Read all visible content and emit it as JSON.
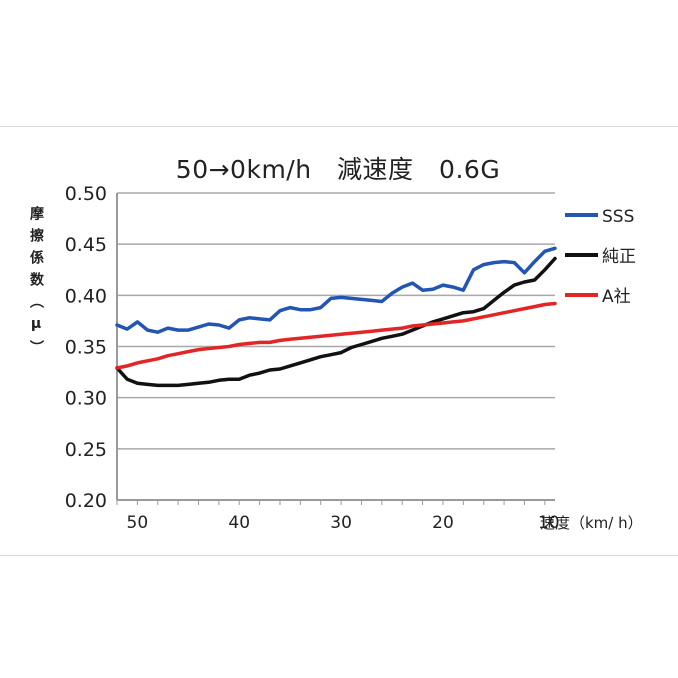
{
  "chart_data": {
    "type": "line",
    "title": "50→0km/h　減速度　0.6G",
    "xlabel": "速度（km/ h）",
    "ylabel": "摩擦係数（μ）",
    "xlim": [
      52,
      9
    ],
    "ylim": [
      0.2,
      0.5
    ],
    "x_ticks": [
      "50",
      "40",
      "30",
      "20",
      "10"
    ],
    "y_ticks": [
      "0.50",
      "0.45",
      "0.40",
      "0.35",
      "0.30",
      "0.25",
      "0.20"
    ],
    "grid": true,
    "legend_position": "right",
    "x": [
      52,
      51,
      50,
      49,
      48,
      47,
      46,
      45,
      44,
      43,
      42,
      41,
      40,
      39,
      38,
      37,
      36,
      35,
      34,
      33,
      32,
      31,
      30,
      29,
      28,
      27,
      26,
      25,
      24,
      23,
      22,
      21,
      20,
      19,
      18,
      17,
      16,
      15,
      14,
      13,
      12,
      11,
      10,
      9
    ],
    "series": [
      {
        "name": "SSS",
        "color": "#2355b3",
        "values": [
          0.371,
          0.367,
          0.374,
          0.366,
          0.364,
          0.368,
          0.366,
          0.366,
          0.369,
          0.372,
          0.371,
          0.368,
          0.376,
          0.378,
          0.377,
          0.376,
          0.385,
          0.388,
          0.386,
          0.386,
          0.388,
          0.397,
          0.398,
          0.397,
          0.396,
          0.395,
          0.394,
          0.402,
          0.408,
          0.412,
          0.405,
          0.406,
          0.41,
          0.408,
          0.405,
          0.425,
          0.43,
          0.432,
          0.433,
          0.432,
          0.422,
          0.433,
          0.443,
          0.446
        ]
      },
      {
        "name": "純正",
        "color": "#111111",
        "values": [
          0.329,
          0.318,
          0.314,
          0.313,
          0.312,
          0.312,
          0.312,
          0.313,
          0.314,
          0.315,
          0.317,
          0.318,
          0.318,
          0.322,
          0.324,
          0.327,
          0.328,
          0.331,
          0.334,
          0.337,
          0.34,
          0.342,
          0.344,
          0.349,
          0.352,
          0.355,
          0.358,
          0.36,
          0.362,
          0.366,
          0.37,
          0.374,
          0.377,
          0.38,
          0.383,
          0.384,
          0.387,
          0.395,
          0.403,
          0.41,
          0.413,
          0.415,
          0.425,
          0.436
        ]
      },
      {
        "name": "A社",
        "color": "#e22626",
        "values": [
          0.329,
          0.331,
          0.334,
          0.336,
          0.338,
          0.341,
          0.343,
          0.345,
          0.347,
          0.348,
          0.349,
          0.35,
          0.352,
          0.353,
          0.354,
          0.354,
          0.356,
          0.357,
          0.358,
          0.359,
          0.36,
          0.361,
          0.362,
          0.363,
          0.364,
          0.365,
          0.366,
          0.367,
          0.368,
          0.37,
          0.371,
          0.372,
          0.373,
          0.374,
          0.375,
          0.377,
          0.379,
          0.381,
          0.383,
          0.385,
          0.387,
          0.389,
          0.391,
          0.392
        ]
      }
    ]
  }
}
